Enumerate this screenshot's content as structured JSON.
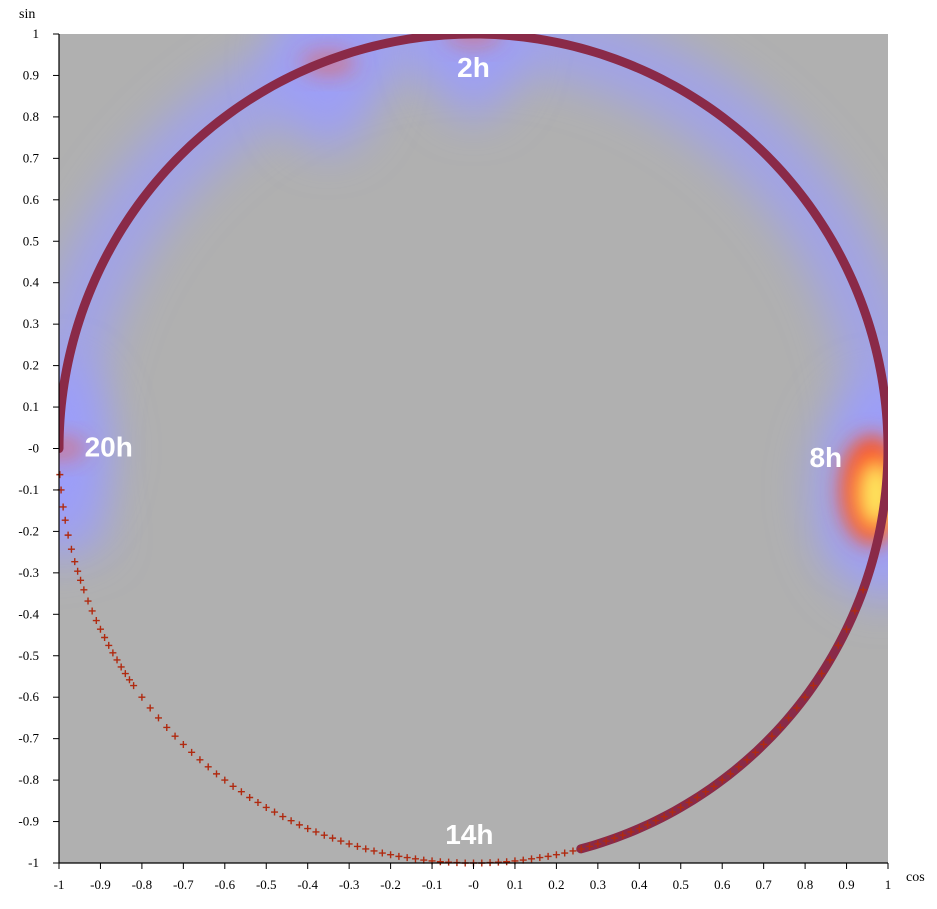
{
  "chart_data": {
    "type": "scatter",
    "title": "",
    "xlabel": "cos",
    "ylabel": "sin",
    "xlim": [
      -1,
      1
    ],
    "ylim": [
      -1,
      1
    ],
    "x_ticks": [
      "-1",
      "-0.9",
      "-0.8",
      "-0.7",
      "-0.6",
      "-0.5",
      "-0.4",
      "-0.3",
      "-0.2",
      "-0.1",
      "-0",
      "0.1",
      "0.2",
      "0.3",
      "0.4",
      "0.5",
      "0.6",
      "0.7",
      "0.8",
      "0.9",
      "1"
    ],
    "y_ticks": [
      "1",
      "0.9",
      "0.8",
      "0.7",
      "0.6",
      "0.5",
      "0.4",
      "0.3",
      "0.2",
      "0.1",
      "-0",
      "-0.1",
      "-0.2",
      "-0.3",
      "-0.4",
      "-0.5",
      "-0.6",
      "-0.7",
      "-0.8",
      "-0.9",
      "-1"
    ],
    "background_color": "#b0b0b0",
    "ring_color": "#8a2a48",
    "marker_color": "#b02a10",
    "density_colors": [
      "#9a9cff",
      "#ff5020",
      "#fff060"
    ],
    "heat_spots": [
      {
        "x": 0.985,
        "y": -0.1,
        "intensity": 1.0
      },
      {
        "x": -0.35,
        "y": 0.93,
        "intensity": 0.45
      },
      {
        "x": 0.0,
        "y": 1.0,
        "intensity": 0.35
      },
      {
        "x": -1.0,
        "y": 0.0,
        "intensity": 0.4
      }
    ],
    "annotations": [
      {
        "text": "2h",
        "x": 0.0,
        "y": 0.92
      },
      {
        "text": "8h",
        "x": 0.85,
        "y": -0.02
      },
      {
        "text": "14h",
        "x": -0.01,
        "y": -0.93
      },
      {
        "text": "20h",
        "x": -0.88,
        "y": 0.005
      }
    ],
    "series": [
      {
        "marker": "ring",
        "arc_start_angle_deg": -75,
        "arc_end_angle_deg": 180
      },
      {
        "marker": "+",
        "x": [
          -0.998,
          -0.995,
          -0.99,
          -0.985,
          -0.978,
          -0.97,
          -0.962,
          -0.955,
          -0.948,
          -0.94,
          -0.93,
          -0.92,
          -0.91,
          -0.9,
          -0.89,
          -0.88,
          -0.87,
          -0.86,
          -0.85,
          -0.84,
          -0.83,
          -0.82,
          -0.8,
          -0.78,
          -0.76,
          -0.74,
          -0.72,
          -0.7,
          -0.68,
          -0.66,
          -0.64,
          -0.62,
          -0.6,
          -0.58,
          -0.56,
          -0.54,
          -0.52,
          -0.5,
          -0.48,
          -0.46,
          -0.44,
          -0.42,
          -0.4,
          -0.38,
          -0.36,
          -0.34,
          -0.32,
          -0.3,
          -0.28,
          -0.26,
          -0.24,
          -0.22,
          -0.2,
          -0.18,
          -0.16,
          -0.14,
          -0.12,
          -0.1,
          -0.08,
          -0.06,
          -0.04,
          -0.02,
          0.0,
          0.02,
          0.04,
          0.06,
          0.08,
          0.1,
          0.12,
          0.14,
          0.16,
          0.18,
          0.2,
          0.22,
          0.24,
          0.26,
          0.28,
          0.3,
          0.32,
          0.34,
          0.36,
          0.38,
          0.4,
          0.42,
          0.44,
          0.46,
          0.48,
          0.5,
          0.52,
          0.54,
          0.56,
          0.58,
          0.6,
          0.62,
          0.64,
          0.66,
          0.68,
          0.7,
          0.72,
          0.74,
          0.76,
          0.78,
          0.8,
          0.82,
          0.84,
          0.86,
          0.88,
          0.9,
          0.92,
          0.94
        ],
        "y": [
          -0.063,
          -0.1,
          -0.141,
          -0.173,
          -0.209,
          -0.243,
          -0.273,
          -0.296,
          -0.318,
          -0.341,
          -0.368,
          -0.392,
          -0.415,
          -0.436,
          -0.456,
          -0.475,
          -0.493,
          -0.51,
          -0.527,
          -0.543,
          -0.558,
          -0.572,
          -0.6,
          -0.626,
          -0.65,
          -0.673,
          -0.694,
          -0.714,
          -0.733,
          -0.751,
          -0.768,
          -0.785,
          -0.8,
          -0.815,
          -0.828,
          -0.842,
          -0.854,
          -0.866,
          -0.877,
          -0.888,
          -0.898,
          -0.908,
          -0.917,
          -0.925,
          -0.933,
          -0.94,
          -0.947,
          -0.954,
          -0.96,
          -0.966,
          -0.971,
          -0.976,
          -0.98,
          -0.984,
          -0.987,
          -0.99,
          -0.993,
          -0.995,
          -0.997,
          -0.998,
          -0.999,
          -1.0,
          -1.0,
          -1.0,
          -0.999,
          -0.998,
          -0.997,
          -0.995,
          -0.993,
          -0.99,
          -0.987,
          -0.984,
          -0.98,
          -0.976,
          -0.971,
          -0.966,
          -0.96,
          -0.954,
          -0.947,
          -0.94,
          -0.933,
          -0.925,
          -0.917,
          -0.908,
          -0.898,
          -0.888,
          -0.877,
          -0.866,
          -0.854,
          -0.842,
          -0.828,
          -0.815,
          -0.8,
          -0.785,
          -0.768,
          -0.751,
          -0.733,
          -0.714,
          -0.694,
          -0.673,
          -0.65,
          -0.626,
          -0.6,
          -0.572,
          -0.543,
          -0.51,
          -0.475,
          -0.436,
          -0.392,
          -0.341
        ]
      }
    ],
    "grid": false,
    "legend": "none"
  }
}
